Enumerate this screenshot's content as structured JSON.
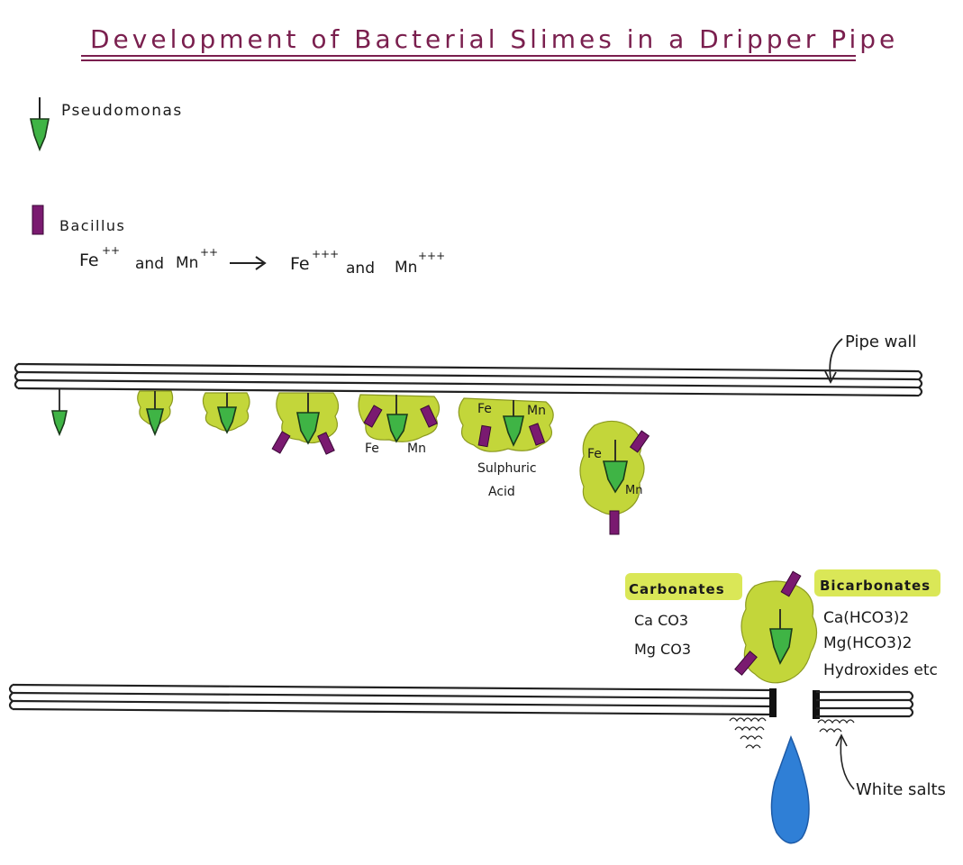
{
  "title": "Development of Bacterial Slimes in a Dripper Pipe",
  "legend": {
    "pseudomonas": "Pseudomonas",
    "bacillus": "Bacillus"
  },
  "reaction": {
    "left_fe": "Fe",
    "left_fe_charge": "++",
    "and1": "and",
    "left_mn": "Mn",
    "left_mn_charge": "++",
    "right_fe": "Fe",
    "right_fe_charge": "+++",
    "and2": "and",
    "right_mn": "Mn",
    "right_mn_charge": "+++"
  },
  "labels": {
    "pipe_wall": "Pipe wall",
    "fe": "Fe",
    "mn": "Mn",
    "fe_stage6": "Fe",
    "mn_stage6": "Mn",
    "sulphuric": "Sulphuric",
    "acid": "Acid",
    "fe_stage7": "Fe",
    "mn_stage7": "Mn",
    "white_salts": "White salts"
  },
  "carbonates": {
    "heading": "Carbonates",
    "items": [
      "Ca CO3",
      "Mg CO3"
    ]
  },
  "bicarbonates": {
    "heading": "Bicarbonates",
    "items": [
      "Ca(HCO3)2",
      "Mg(HCO3)2",
      "Hydroxides etc"
    ]
  },
  "colors": {
    "title": "#7a1f4e",
    "slime": "#c3d63a",
    "pseudomonas": "#3fb445",
    "bacillus": "#7a1a70",
    "water_drop": "#2f7fd6"
  }
}
